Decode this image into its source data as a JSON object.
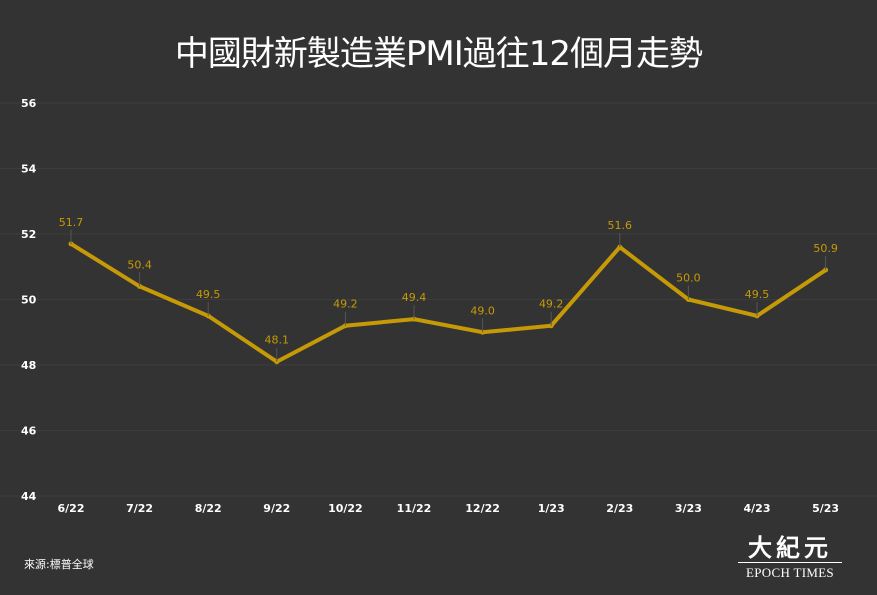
{
  "title": "中國財新製造業PMI過往12個月走勢",
  "source": "來源:標普全球",
  "logo": {
    "name_cn": "大紀元",
    "name_en": "EPOCH TIMES"
  },
  "colors": {
    "background": "#333333",
    "gridline": "#3d3d3d",
    "line": "#c59a06",
    "data_label": "#c59a06",
    "axis_text": "#ffffff"
  },
  "chart_data": {
    "type": "line",
    "title": "中國財新製造業PMI過往12個月走勢",
    "xlabel": "",
    "ylabel": "",
    "categories": [
      "6/22",
      "7/22",
      "8/22",
      "9/22",
      "10/22",
      "11/22",
      "12/22",
      "1/23",
      "2/23",
      "3/23",
      "4/23",
      "5/23"
    ],
    "values": [
      51.7,
      50.4,
      49.5,
      48.1,
      49.2,
      49.4,
      49.0,
      49.2,
      51.6,
      50.0,
      49.5,
      50.9
    ],
    "data_labels": [
      "51.7",
      "50.4",
      "49.5",
      "48.1",
      "49.2",
      "49.4",
      "49.0",
      "49.2",
      "51.6",
      "50.0",
      "49.5",
      "50.9"
    ],
    "yticks": [
      "44",
      "46",
      "48",
      "50",
      "52",
      "54",
      "56"
    ],
    "ylim": [
      44,
      56
    ],
    "grid": true,
    "legend": "none"
  }
}
